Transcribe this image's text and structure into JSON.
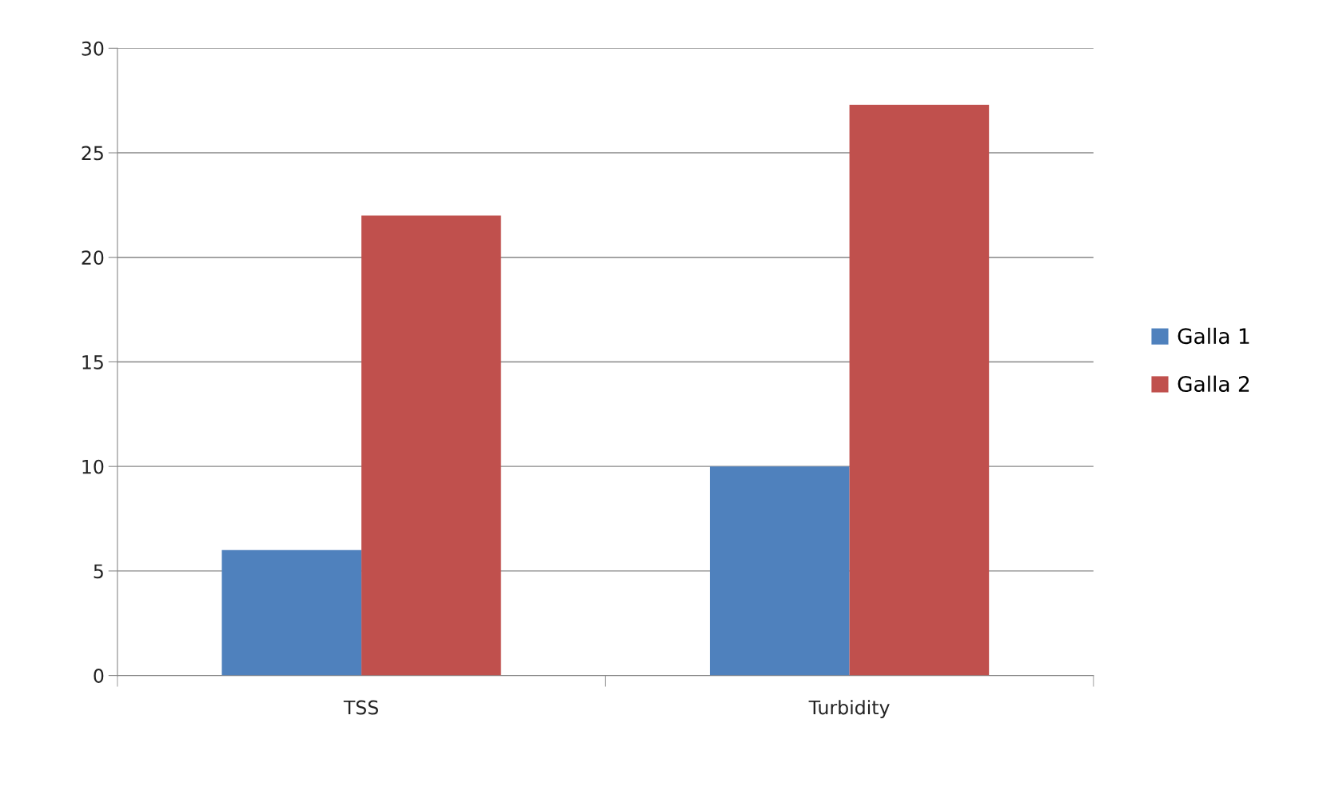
{
  "chart_data": {
    "type": "bar",
    "categories": [
      "TSS",
      "Turbidity"
    ],
    "series": [
      {
        "name": "Galla 1",
        "color": "#4f81bd",
        "values": [
          6,
          10
        ]
      },
      {
        "name": "Galla 2",
        "color": "#c0504d",
        "values": [
          22,
          27.3
        ]
      }
    ],
    "ylim": [
      0,
      30
    ],
    "yticks": [
      0,
      5,
      10,
      15,
      20,
      25,
      30
    ],
    "grid": "y",
    "legend": "right"
  }
}
